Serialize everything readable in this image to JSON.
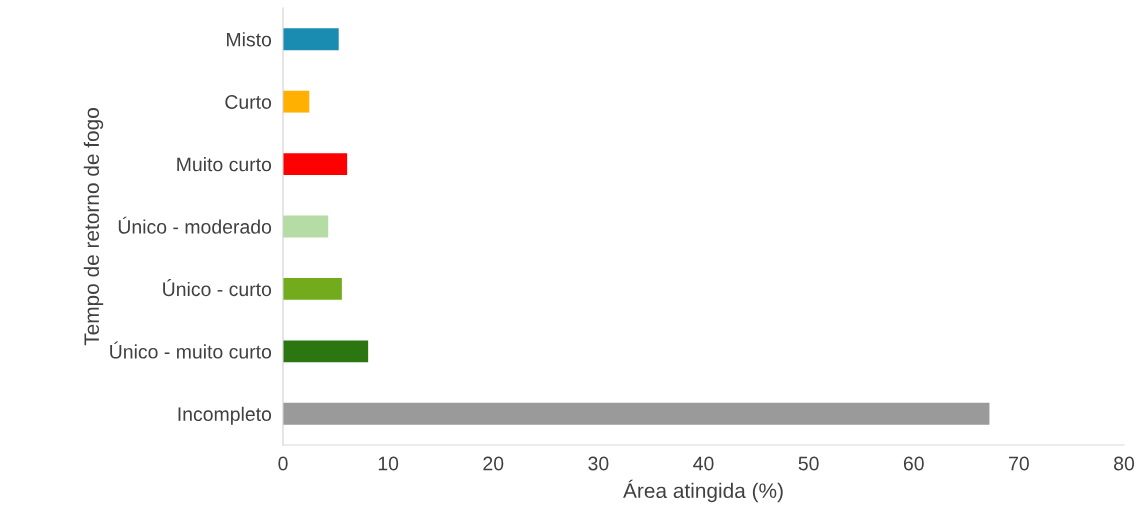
{
  "chart_data": {
    "type": "bar",
    "orientation": "horizontal",
    "xlabel": "Área atingida (%)",
    "ylabel": "Tempo de retorno de fogo",
    "categories": [
      "Misto",
      "Curto",
      "Muito curto",
      "Único - moderado",
      "Único - curto",
      "Único - muito curto",
      "Incompleto"
    ],
    "values": [
      5.3,
      2.5,
      6.1,
      4.3,
      5.6,
      8.1,
      67.2
    ],
    "colors": [
      "#1a8cb2",
      "#ffb000",
      "#ff0000",
      "#b5dca5",
      "#72ac1c",
      "#2b7611",
      "#9a9a9a"
    ],
    "xlim": [
      0,
      80
    ],
    "xticks": [
      0,
      10,
      20,
      30,
      40,
      50,
      60,
      70,
      80
    ],
    "grid": false,
    "legend": false
  }
}
